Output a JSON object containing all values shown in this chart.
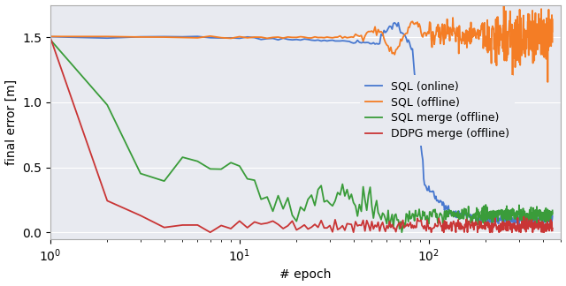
{
  "title": "",
  "xlabel": "# epoch",
  "ylabel": "final error [m]",
  "ylim": [
    -0.05,
    1.75
  ],
  "xlim": [
    1,
    500
  ],
  "legend_labels": [
    "SQL (online)",
    "SQL (offline)",
    "SQL merge (offline)",
    "DDPG merge (offline)"
  ],
  "colors": {
    "sql_online": "#4878cf",
    "sql_offline": "#f47d25",
    "sql_merge": "#3a9c3a",
    "ddpg_merge": "#c93535"
  },
  "background_color": "#e8eaf0",
  "figure_facecolor": "#ffffff",
  "legend_loc": "center right",
  "linewidth": 1.3,
  "yticks": [
    0.0,
    0.5,
    1.0,
    1.5
  ]
}
